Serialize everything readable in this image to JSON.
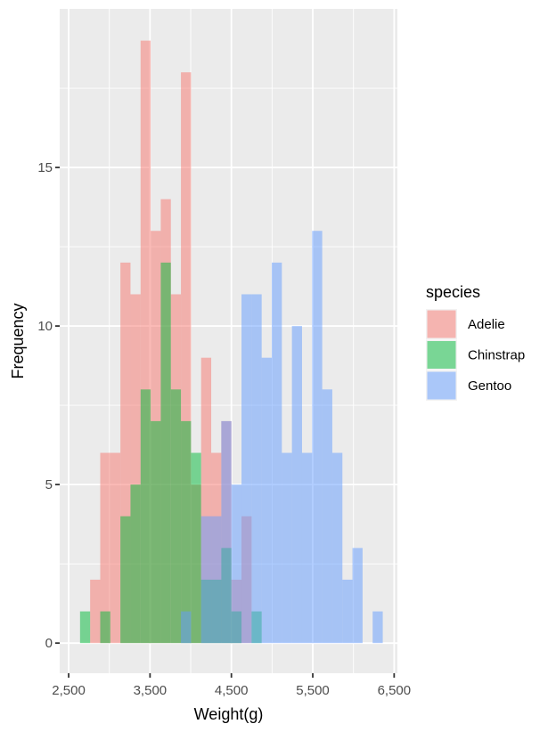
{
  "chart_data": {
    "type": "histogram",
    "title": "",
    "xlabel": "Weight(g)",
    "ylabel": "Frequency",
    "xlim": [
      2390,
      6540
    ],
    "ylim": [
      -0.95,
      20
    ],
    "x_ticks": [
      2500,
      3500,
      4500,
      5500,
      6500
    ],
    "x_tick_labels": [
      "2,500",
      "3,500",
      "4,500",
      "5,500",
      "6,500"
    ],
    "y_ticks": [
      0,
      5,
      10,
      15
    ],
    "y_tick_labels": [
      "0",
      "5",
      "10",
      "15"
    ],
    "grid": true,
    "bin_start": 2640,
    "bin_width": 124,
    "legend": {
      "title": "species",
      "position": "right",
      "entries": [
        "Adelie",
        "Chinstrap",
        "Gentoo"
      ]
    },
    "series": [
      {
        "name": "Adelie",
        "color": "#F8766D",
        "counts": [
          0,
          2,
          6,
          6,
          12,
          11,
          19,
          13,
          14,
          11,
          18,
          5,
          9,
          6,
          7,
          2,
          4,
          0,
          0,
          0,
          0,
          0,
          0,
          0,
          0,
          0,
          0,
          0,
          0,
          0
        ]
      },
      {
        "name": "Chinstrap",
        "color": "#00BA38",
        "counts": [
          1,
          0,
          1,
          0,
          4,
          5,
          8,
          7,
          12,
          8,
          7,
          6,
          2,
          2,
          3,
          1,
          0,
          1,
          0,
          0,
          0,
          0,
          0,
          0,
          0,
          0,
          0,
          0,
          0,
          0
        ]
      },
      {
        "name": "Gentoo",
        "color": "#619CFF",
        "counts": [
          0,
          0,
          0,
          0,
          0,
          0,
          0,
          0,
          0,
          0,
          1,
          0,
          4,
          4,
          7,
          5,
          11,
          11,
          9,
          12,
          6,
          10,
          6,
          13,
          8,
          6,
          2,
          3,
          0,
          1
        ]
      }
    ],
    "bar_opacity": 0.5,
    "panel_background": "#EBEBEB"
  }
}
